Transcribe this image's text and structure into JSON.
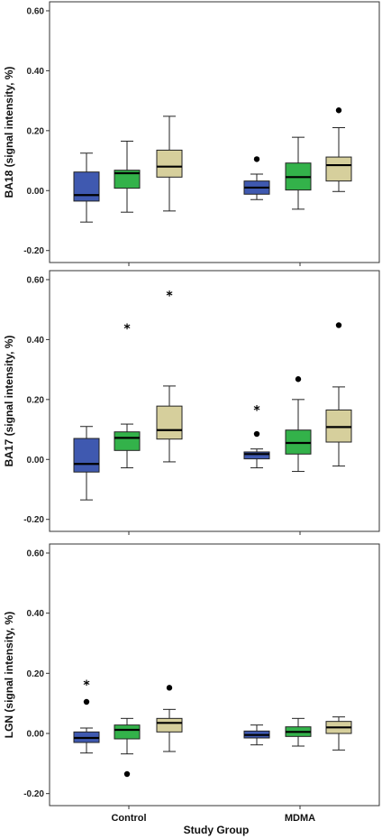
{
  "chart_data": {
    "type": "box",
    "groups": [
      "Control",
      "MDMA"
    ],
    "box_colors": [
      "#3f59b0",
      "#33b24a",
      "#d6cf9c"
    ],
    "xlabel": "Study Group",
    "ylim": [
      -0.24,
      0.63
    ],
    "ytick_values": [
      -0.2,
      0.0,
      0.2,
      0.4,
      0.6
    ],
    "ytick_labels": [
      "-0.20",
      "0.00",
      "0.20",
      "0.40",
      "0.60"
    ],
    "panels": [
      {
        "ylabel": "BA18 (signal intensity, %)",
        "groups": [
          {
            "name": "Control",
            "boxes": [
              {
                "whisker_low": -0.105,
                "q1": -0.035,
                "median": -0.015,
                "q3": 0.062,
                "whisker_high": 0.125,
                "outliers": []
              },
              {
                "whisker_low": -0.072,
                "q1": 0.008,
                "median": 0.058,
                "q3": 0.068,
                "whisker_high": 0.165,
                "outliers": []
              },
              {
                "whisker_low": -0.068,
                "q1": 0.045,
                "median": 0.08,
                "q3": 0.135,
                "whisker_high": 0.248,
                "outliers": []
              }
            ]
          },
          {
            "name": "MDMA",
            "boxes": [
              {
                "whisker_low": -0.03,
                "q1": -0.012,
                "median": 0.01,
                "q3": 0.032,
                "whisker_high": 0.055,
                "outliers": [
                  {
                    "value": 0.105,
                    "marker": "circle"
                  }
                ]
              },
              {
                "whisker_low": -0.062,
                "q1": 0.002,
                "median": 0.045,
                "q3": 0.092,
                "whisker_high": 0.178,
                "outliers": []
              },
              {
                "whisker_low": -0.003,
                "q1": 0.032,
                "median": 0.085,
                "q3": 0.112,
                "whisker_high": 0.21,
                "outliers": [
                  {
                    "value": 0.268,
                    "marker": "circle"
                  }
                ]
              }
            ]
          }
        ]
      },
      {
        "ylabel": "BA17 (signal intensity, %)",
        "groups": [
          {
            "name": "Control",
            "boxes": [
              {
                "whisker_low": -0.135,
                "q1": -0.042,
                "median": -0.015,
                "q3": 0.07,
                "whisker_high": 0.11,
                "outliers": []
              },
              {
                "whisker_low": -0.028,
                "q1": 0.03,
                "median": 0.072,
                "q3": 0.092,
                "whisker_high": 0.118,
                "outliers": [
                  {
                    "value": 0.44,
                    "marker": "star"
                  }
                ]
              },
              {
                "whisker_low": -0.008,
                "q1": 0.068,
                "median": 0.098,
                "q3": 0.178,
                "whisker_high": 0.245,
                "outliers": [
                  {
                    "value": 0.55,
                    "marker": "star"
                  }
                ]
              }
            ]
          },
          {
            "name": "MDMA",
            "boxes": [
              {
                "whisker_low": -0.028,
                "q1": 0.002,
                "median": 0.018,
                "q3": 0.025,
                "whisker_high": 0.035,
                "outliers": [
                  {
                    "value": 0.085,
                    "marker": "circle"
                  },
                  {
                    "value": 0.168,
                    "marker": "star"
                  }
                ]
              },
              {
                "whisker_low": -0.04,
                "q1": 0.018,
                "median": 0.055,
                "q3": 0.098,
                "whisker_high": 0.2,
                "outliers": [
                  {
                    "value": 0.268,
                    "marker": "circle"
                  }
                ]
              },
              {
                "whisker_low": -0.022,
                "q1": 0.058,
                "median": 0.108,
                "q3": 0.165,
                "whisker_high": 0.242,
                "outliers": [
                  {
                    "value": 0.448,
                    "marker": "circle"
                  }
                ]
              }
            ]
          }
        ]
      },
      {
        "ylabel": "LGN (signal intensity, %)",
        "groups": [
          {
            "name": "Control",
            "boxes": [
              {
                "whisker_low": -0.065,
                "q1": -0.03,
                "median": -0.015,
                "q3": 0.005,
                "whisker_high": 0.018,
                "outliers": [
                  {
                    "value": 0.105,
                    "marker": "circle"
                  },
                  {
                    "value": 0.165,
                    "marker": "star"
                  }
                ]
              },
              {
                "whisker_low": -0.068,
                "q1": -0.018,
                "median": 0.012,
                "q3": 0.028,
                "whisker_high": 0.05,
                "outliers": [
                  {
                    "value": -0.135,
                    "marker": "circle"
                  }
                ]
              },
              {
                "whisker_low": -0.06,
                "q1": 0.005,
                "median": 0.035,
                "q3": 0.05,
                "whisker_high": 0.08,
                "outliers": [
                  {
                    "value": 0.152,
                    "marker": "circle"
                  }
                ]
              }
            ]
          },
          {
            "name": "MDMA",
            "boxes": [
              {
                "whisker_low": -0.038,
                "q1": -0.015,
                "median": -0.005,
                "q3": 0.008,
                "whisker_high": 0.028,
                "outliers": []
              },
              {
                "whisker_low": -0.042,
                "q1": -0.01,
                "median": 0.005,
                "q3": 0.022,
                "whisker_high": 0.05,
                "outliers": []
              },
              {
                "whisker_low": -0.055,
                "q1": 0.0,
                "median": 0.02,
                "q3": 0.04,
                "whisker_high": 0.055,
                "outliers": []
              }
            ]
          }
        ]
      }
    ]
  }
}
